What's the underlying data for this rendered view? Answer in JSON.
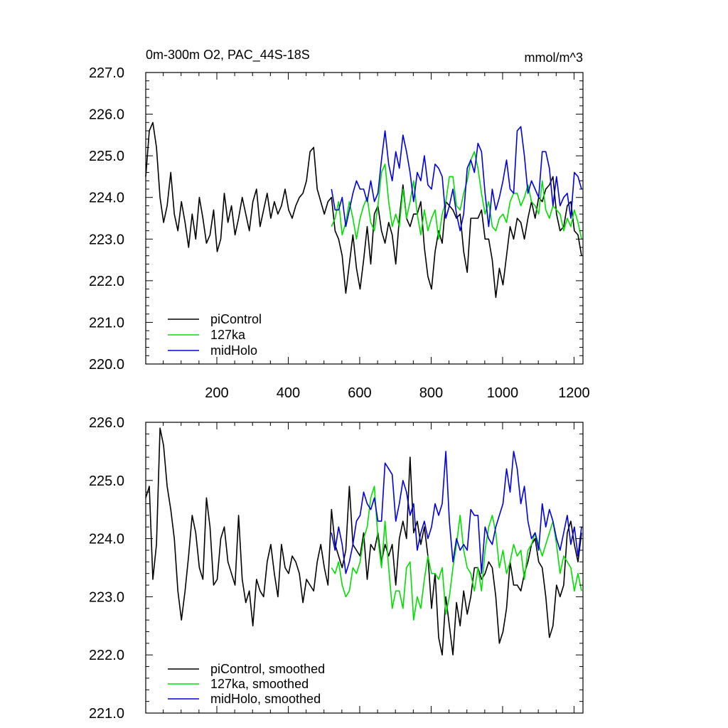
{
  "figure": {
    "title_left": "0m-300m O2, PAC_44S-18S",
    "title_right": "mmol/m^3"
  },
  "chart_data": [
    {
      "type": "line",
      "title": "0m-300m O2, PAC_44S-18S",
      "units": "mmol/m^3",
      "xlim": [
        1,
        1225
      ],
      "ylim": [
        220.0,
        227.0
      ],
      "x_ticks": [
        200,
        400,
        600,
        800,
        1000,
        1200
      ],
      "x_tick_labels": [
        "200",
        "400",
        "600",
        "800",
        "1000",
        "1200"
      ],
      "y_ticks": [
        220.0,
        221.0,
        222.0,
        223.0,
        224.0,
        225.0,
        226.0,
        227.0
      ],
      "y_tick_labels": [
        "220.0",
        "221.0",
        "222.0",
        "223.0",
        "224.0",
        "225.0",
        "226.0",
        "227.0"
      ],
      "legend_position": "bottom-left",
      "series": [
        {
          "name": "piControl",
          "color": "#000000",
          "x_start": 1,
          "x_step": 10,
          "values": [
            224.5,
            225.6,
            225.8,
            225.2,
            224.0,
            223.4,
            223.8,
            224.6,
            223.6,
            223.2,
            223.9,
            223.4,
            222.8,
            223.6,
            223.0,
            224.0,
            223.5,
            222.9,
            223.1,
            223.7,
            222.7,
            223.0,
            224.1,
            223.4,
            223.8,
            223.1,
            223.5,
            224.0,
            223.6,
            223.2,
            223.9,
            224.2,
            223.3,
            223.7,
            224.1,
            223.5,
            223.9,
            223.6,
            223.8,
            224.2,
            223.7,
            223.5,
            223.8,
            224.0,
            224.1,
            224.4,
            225.1,
            225.2,
            224.2,
            223.9,
            223.6,
            223.9,
            224.0,
            223.2,
            223.0,
            222.6,
            221.7,
            222.4,
            223.1,
            222.3,
            221.8,
            222.5,
            223.3,
            222.4,
            223.6,
            223.8,
            223.2,
            222.9,
            223.4,
            223.1,
            222.4,
            223.5,
            224.3,
            223.5,
            223.3,
            223.6,
            223.6,
            223.9,
            222.8,
            222.1,
            221.8,
            222.7,
            223.2,
            222.9,
            223.9,
            223.8,
            223.7,
            223.5,
            223.6,
            222.7,
            222.2,
            223.5,
            223.5,
            223.5,
            223.7,
            223.0,
            223.0,
            222.5,
            221.6,
            222.3,
            221.9,
            222.6,
            223.3,
            223.0,
            223.5,
            223.4,
            223.0,
            223.5,
            223.9,
            223.5,
            224.0,
            223.9,
            224.2,
            224.3,
            224.5,
            223.6,
            223.2,
            223.3,
            223.8,
            223.9,
            223.2,
            223.1,
            222.6
          ]
        },
        {
          "name": "127ka",
          "color": "#00e000",
          "x_start": 521,
          "x_step": 10,
          "values": [
            223.3,
            223.5,
            223.9,
            223.1,
            223.4,
            223.9,
            223.5,
            223.0,
            223.5,
            223.8,
            224.0,
            223.4,
            223.2,
            223.8,
            224.6,
            224.8,
            223.9,
            223.3,
            223.6,
            223.3,
            224.2,
            223.5,
            223.9,
            224.4,
            223.6,
            223.1,
            223.7,
            223.2,
            223.5,
            223.7,
            223.0,
            223.6,
            223.9,
            224.5,
            224.5,
            223.8,
            223.7,
            224.1,
            224.4,
            224.9,
            225.1,
            224.7,
            224.1,
            223.6,
            223.9,
            223.3,
            223.2,
            223.5,
            223.6,
            223.4,
            223.9,
            224.1,
            224.1,
            223.8,
            224.0,
            224.3,
            223.9,
            223.8,
            223.6,
            224.4,
            223.7,
            223.5,
            223.8,
            223.7,
            223.6,
            223.2,
            223.5,
            223.3,
            223.7,
            223.4,
            223.0
          ]
        },
        {
          "name": "midHolo",
          "color": "#0000e0",
          "x_start": 521,
          "x_step": 10,
          "values": [
            224.2,
            223.7,
            223.7,
            224.0,
            223.3,
            223.7,
            224.1,
            224.4,
            224.2,
            224.2,
            223.9,
            224.4,
            223.9,
            224.1,
            224.9,
            225.6,
            224.8,
            224.4,
            225.1,
            224.7,
            225.5,
            225.1,
            224.6,
            223.9,
            224.6,
            224.4,
            225.0,
            224.3,
            224.2,
            224.8,
            224.7,
            224.5,
            223.5,
            223.8,
            224.2,
            223.6,
            223.2,
            223.6,
            224.7,
            224.9,
            224.6,
            225.3,
            225.1,
            224.1,
            223.3,
            224.2,
            223.7,
            224.0,
            224.4,
            224.9,
            224.2,
            224.1,
            225.6,
            225.7,
            225.0,
            224.1,
            224.4,
            224.2,
            224.0,
            225.1,
            225.1,
            224.7,
            223.8,
            224.5,
            223.8,
            224.0,
            224.1,
            223.5,
            224.6,
            224.5,
            224.2
          ]
        }
      ]
    },
    {
      "type": "line",
      "title": "",
      "xlim": [
        1,
        1225
      ],
      "ylim": [
        221.0,
        226.0
      ],
      "y_ticks": [
        221.0,
        222.0,
        223.0,
        224.0,
        225.0,
        226.0
      ],
      "y_tick_labels": [
        "221.0",
        "222.0",
        "223.0",
        "224.0",
        "225.0",
        "226.0"
      ],
      "legend_position": "bottom-left",
      "series": [
        {
          "name": "piControl, smoothed",
          "color": "#000000",
          "x_start": 1,
          "x_step": 10,
          "values": [
            224.7,
            224.9,
            223.3,
            223.9,
            225.9,
            225.6,
            224.9,
            224.5,
            224.0,
            223.1,
            222.6,
            223.1,
            223.7,
            224.4,
            224.1,
            223.5,
            223.3,
            224.7,
            224.2,
            223.2,
            223.3,
            224.0,
            224.2,
            223.6,
            223.4,
            223.2,
            224.4,
            223.3,
            222.9,
            223.1,
            222.5,
            223.3,
            223.1,
            223.0,
            223.6,
            223.9,
            223.4,
            223.0,
            223.9,
            223.5,
            223.4,
            223.7,
            223.6,
            223.4,
            222.9,
            223.3,
            223.2,
            223.1,
            223.6,
            223.9,
            223.5,
            223.2,
            224.5,
            223.9,
            223.7,
            223.5,
            223.8,
            224.9,
            223.9,
            223.8,
            223.7,
            224.1,
            223.3,
            223.9,
            223.8,
            224.1,
            223.6,
            223.9,
            223.7,
            223.9,
            223.2,
            224.0,
            224.3,
            224.0,
            225.4,
            224.1,
            224.3,
            223.9,
            224.2,
            223.7,
            222.8,
            223.4,
            222.3,
            222.0,
            223.0,
            222.5,
            222.0,
            222.9,
            222.5,
            223.1,
            222.7,
            223.0,
            223.5,
            223.5,
            223.3,
            223.4,
            223.6,
            223.5,
            223.0,
            222.2,
            222.4,
            222.8,
            223.6,
            223.2,
            223.2,
            223.1,
            223.4,
            223.6,
            223.9,
            224.0,
            223.6,
            223.5,
            223.0,
            222.3,
            222.5,
            223.2,
            223.0,
            223.2,
            224.1,
            224.3,
            223.9,
            223.6,
            224.1
          ]
        },
        {
          "name": "127ka, smoothed",
          "color": "#00e000",
          "x_start": 521,
          "x_step": 10,
          "values": [
            223.5,
            223.4,
            223.6,
            223.2,
            223.0,
            223.1,
            223.5,
            223.4,
            223.6,
            224.0,
            224.2,
            224.7,
            224.9,
            224.0,
            223.5,
            224.3,
            223.5,
            222.8,
            223.1,
            223.1,
            222.8,
            223.5,
            223.6,
            222.6,
            223.0,
            222.8,
            223.3,
            223.7,
            223.4,
            223.4,
            223.3,
            223.5,
            222.7,
            223.0,
            223.5,
            223.9,
            224.4,
            223.8,
            223.5,
            223.4,
            223.1,
            223.5,
            223.1,
            223.8,
            224.2,
            224.4,
            224.1,
            223.5,
            223.8,
            223.4,
            223.6,
            223.9,
            223.7,
            223.8,
            223.3,
            223.8,
            223.9,
            224.1,
            223.9,
            223.7,
            223.9,
            224.1,
            224.3,
            223.9,
            223.4,
            223.7,
            223.6,
            223.5,
            223.1,
            223.4,
            223.1
          ]
        },
        {
          "name": "midHolo, smoothed",
          "color": "#0000e0",
          "x_start": 521,
          "x_step": 10,
          "values": [
            224.1,
            223.8,
            224.2,
            223.9,
            223.4,
            223.6,
            223.9,
            224.3,
            224.4,
            224.8,
            224.6,
            224.5,
            224.7,
            224.3,
            224.3,
            225.3,
            225.2,
            225.1,
            224.3,
            224.6,
            225.0,
            224.8,
            224.4,
            224.6,
            223.8,
            224.1,
            224.3,
            224.0,
            224.2,
            224.6,
            224.4,
            224.6,
            225.5,
            224.3,
            223.6,
            224.0,
            223.8,
            223.9,
            223.8,
            224.5,
            224.4,
            224.4,
            223.4,
            224.2,
            224.0,
            223.9,
            224.2,
            224.4,
            224.6,
            225.2,
            224.8,
            225.5,
            225.2,
            224.6,
            224.9,
            224.3,
            224.0,
            224.1,
            223.8,
            224.6,
            224.2,
            224.5,
            224.3,
            224.0,
            223.8,
            224.1,
            224.4,
            223.9,
            224.2,
            223.7,
            224.2
          ]
        }
      ]
    }
  ]
}
